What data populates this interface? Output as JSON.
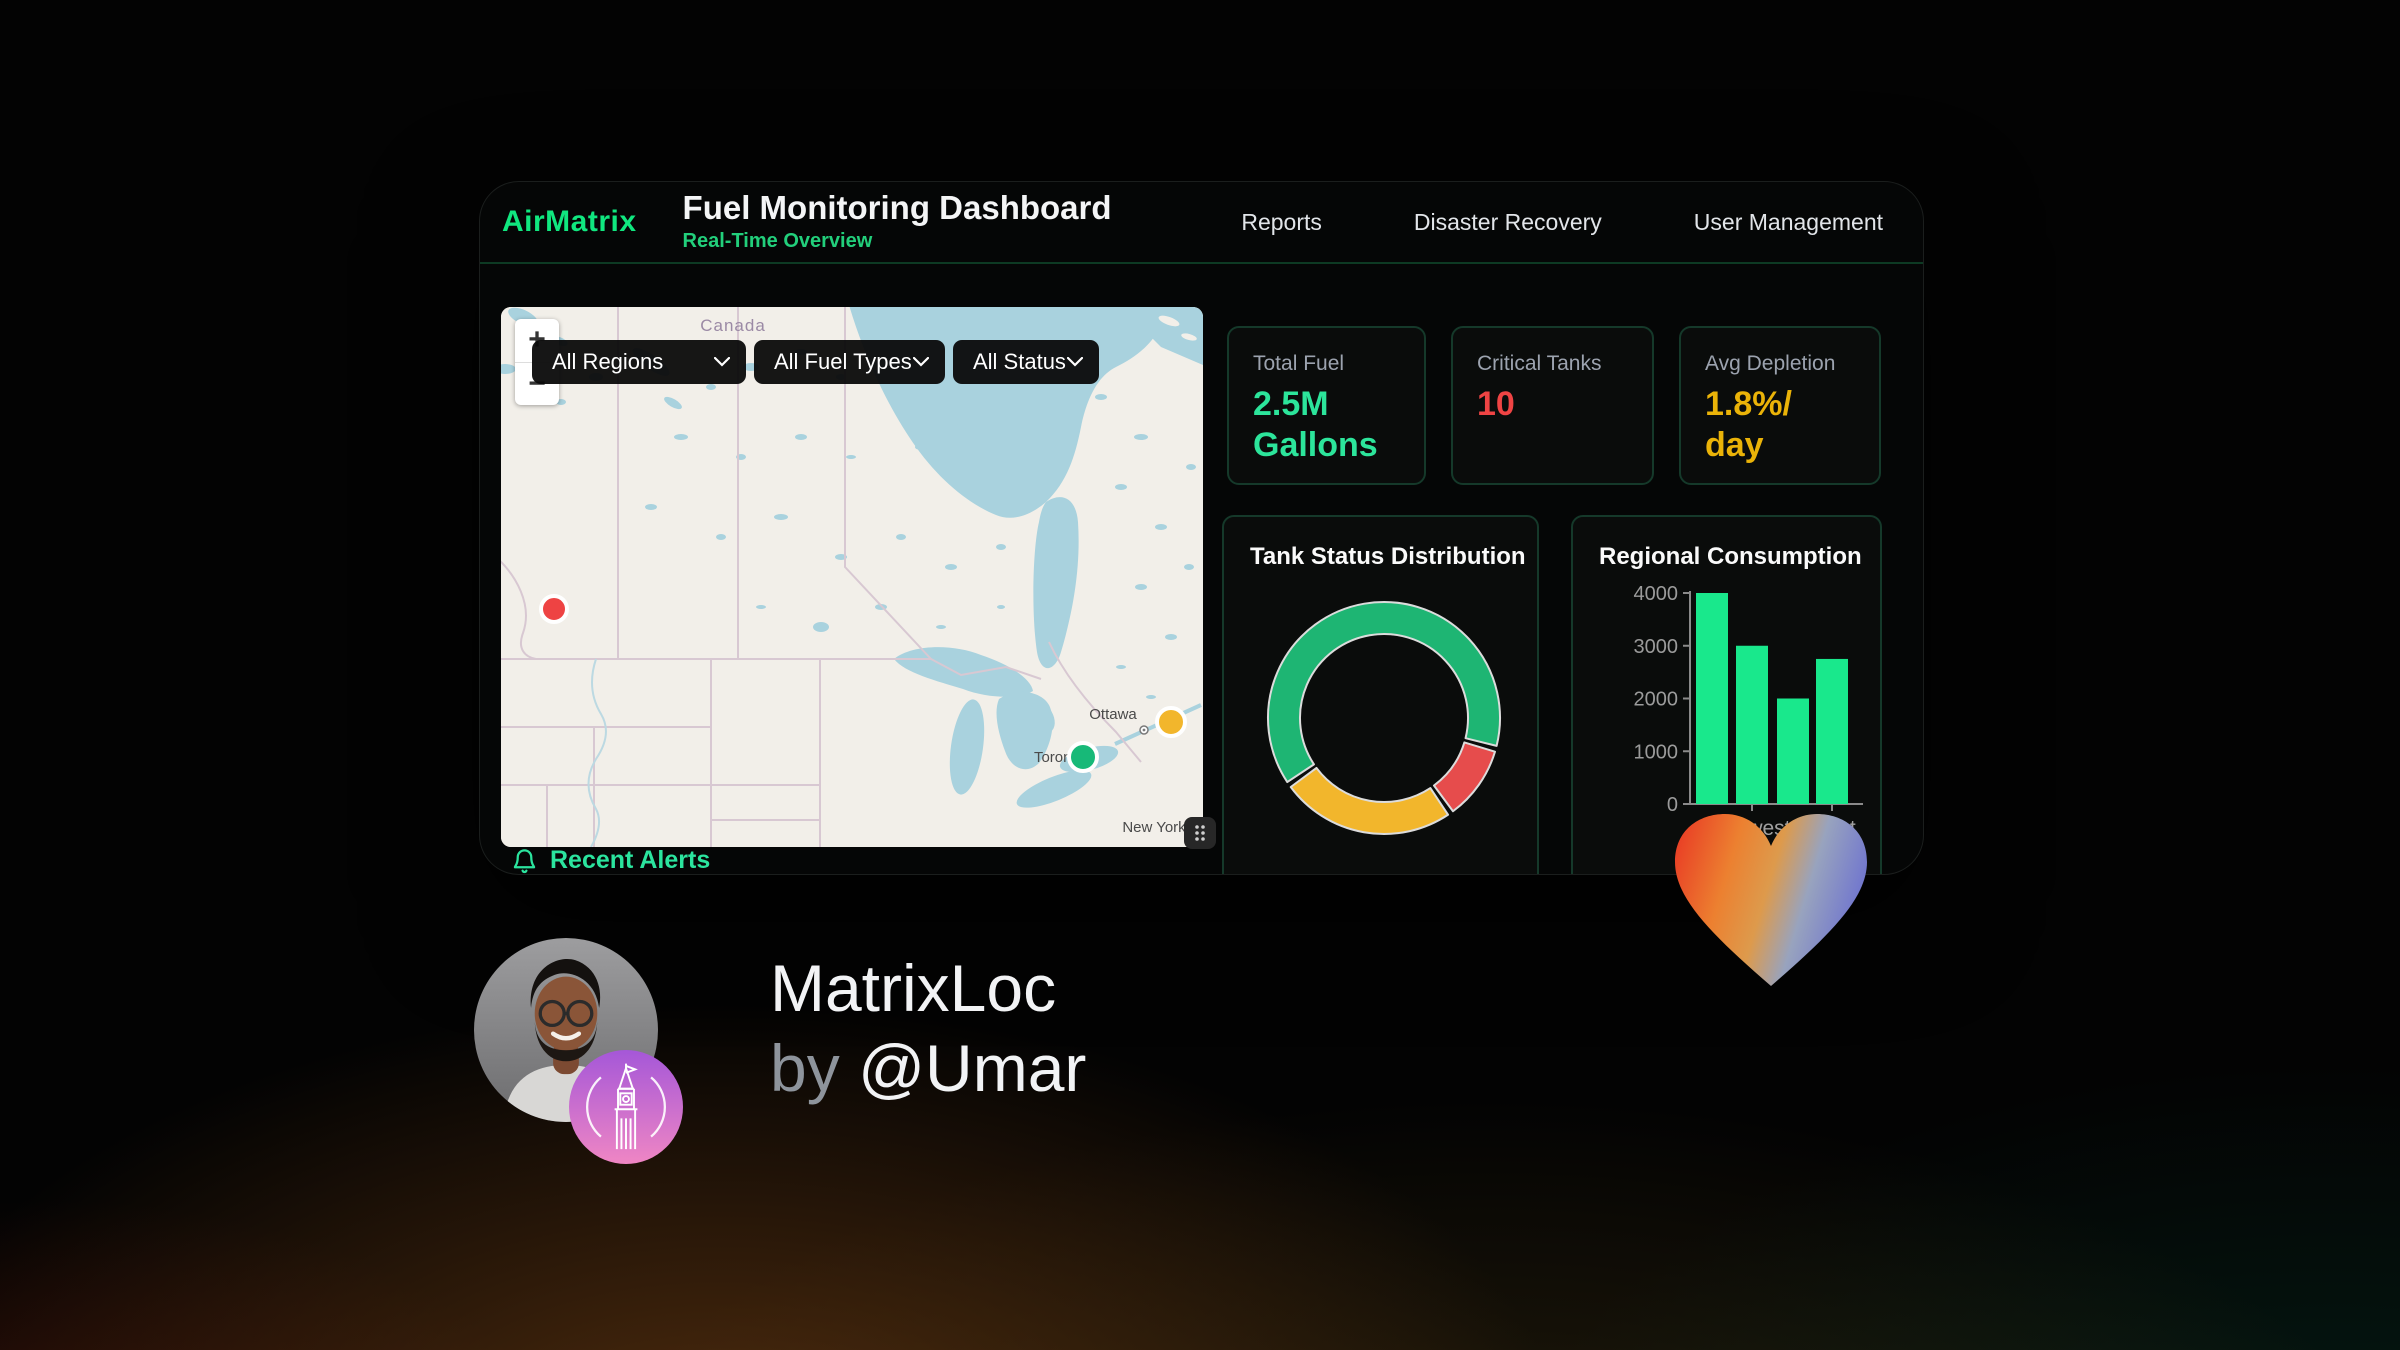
{
  "header": {
    "brand": "AirMatrix",
    "title": "Fuel Monitoring Dashboard",
    "subtitle": "Real-Time Overview",
    "nav": [
      {
        "label": "Reports"
      },
      {
        "label": "Disaster Recovery"
      },
      {
        "label": "User Management"
      }
    ]
  },
  "map": {
    "filters": [
      {
        "value": "All Regions"
      },
      {
        "value": "All Fuel Types"
      },
      {
        "value": "All Status"
      }
    ],
    "zoom_in": "+",
    "zoom_out": "−",
    "labels": {
      "country": "Canada",
      "ottawa": "Ottawa",
      "toronto": "Toronto",
      "new_york": "New York"
    },
    "markers": [
      {
        "id": "west-tank",
        "status_color": "#ee4343"
      },
      {
        "id": "toronto-tank",
        "status_color": "#17b978"
      },
      {
        "id": "ottawa-tank",
        "status_color": "#f2b62c"
      }
    ]
  },
  "stats": [
    {
      "label": "Total Fuel",
      "value": "2.5M\nGallons",
      "color": "#2ce59b"
    },
    {
      "label": "Critical Tanks",
      "value": "10",
      "color": "#ef4444"
    },
    {
      "label": "Avg Depletion",
      "value": "1.8%/\nday",
      "color": "#eab308"
    }
  ],
  "alerts": {
    "title": "Recent Alerts"
  },
  "chart_data": [
    {
      "type": "pie",
      "donut": true,
      "title": "Tank Status Distribution",
      "segments": [
        {
          "name": "green",
          "value": 64,
          "color": "#1eb573"
        },
        {
          "name": "red",
          "value": 11,
          "color": "#e64c4c"
        },
        {
          "name": "amber",
          "value": 25,
          "color": "#f2b62c"
        }
      ],
      "start_angle_deg": 235,
      "legend": "none"
    },
    {
      "type": "bar",
      "title": "Regional Consumption",
      "categories": [
        "",
        "Midwest",
        "",
        "West"
      ],
      "values": [
        4000,
        3000,
        2000,
        2750
      ],
      "ylim": [
        0,
        4000
      ],
      "yticks": [
        0,
        1000,
        2000,
        3000,
        4000
      ],
      "bar_color": "#19e88c",
      "grid": false
    }
  ],
  "footer": {
    "app_name": "MatrixLoc",
    "byline_prefix": "by",
    "byline_handle": "@Umar"
  }
}
